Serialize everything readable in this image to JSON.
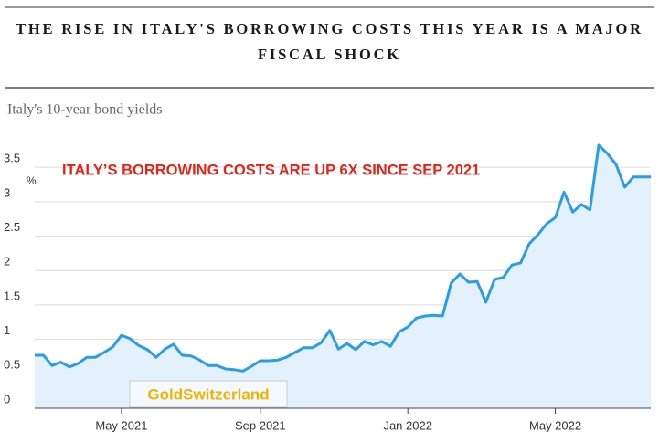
{
  "chart_data": {
    "type": "area",
    "title": "THE RISE IN ITALY'S BORROWING COSTS THIS YEAR IS A MAJOR FISCAL SHOCK",
    "subtitle": "Italy's 10-year bond yields",
    "ylabel": "%",
    "annotation": "ITALY’S BORROWING COSTS ARE UP 6X SINCE SEP 2021",
    "watermark": "GoldSwitzerland",
    "categories": [
      null,
      null,
      null,
      null,
      null,
      null,
      null,
      null,
      null,
      null,
      "May 2021",
      null,
      null,
      null,
      null,
      null,
      null,
      null,
      null,
      null,
      null,
      null,
      null,
      null,
      null,
      null,
      "Sep 2021",
      null,
      null,
      null,
      null,
      null,
      null,
      null,
      null,
      null,
      null,
      null,
      null,
      null,
      null,
      null,
      null,
      "Jan 2022",
      null,
      null,
      null,
      null,
      null,
      null,
      null,
      null,
      null,
      null,
      null,
      null,
      null,
      null,
      null,
      null,
      "May 2022",
      null,
      null,
      null,
      null,
      null,
      null,
      null,
      null,
      null,
      null,
      null
    ],
    "series": [
      {
        "name": "Italy 10-year",
        "color": "#2b9de6",
        "fill": "#e2f1fb",
        "values": [
          0.77,
          0.77,
          0.62,
          0.67,
          0.6,
          0.65,
          0.74,
          0.74,
          0.81,
          0.89,
          1.06,
          1.01,
          0.91,
          0.85,
          0.74,
          0.86,
          0.93,
          0.77,
          0.76,
          0.7,
          0.62,
          0.62,
          0.57,
          0.56,
          0.54,
          0.61,
          0.69,
          0.69,
          0.7,
          0.74,
          0.81,
          0.88,
          0.88,
          0.95,
          1.13,
          0.86,
          0.94,
          0.85,
          0.97,
          0.92,
          0.97,
          0.9,
          1.11,
          1.18,
          1.31,
          1.34,
          1.35,
          1.34,
          1.82,
          1.95,
          1.83,
          1.84,
          1.54,
          1.87,
          1.9,
          2.08,
          2.11,
          2.39,
          2.52,
          2.68,
          2.77,
          3.14,
          2.85,
          2.96,
          2.88,
          3.82,
          3.7,
          3.54,
          3.21,
          3.36,
          3.36,
          3.36
        ]
      }
    ],
    "ylim": [
      0,
      3.9
    ],
    "yticks": [
      0,
      0.5,
      1,
      1.5,
      2,
      2.5,
      3,
      3.5
    ],
    "grid": true,
    "annotation_color": "#e0251b",
    "watermark_color": "#f0b300"
  }
}
